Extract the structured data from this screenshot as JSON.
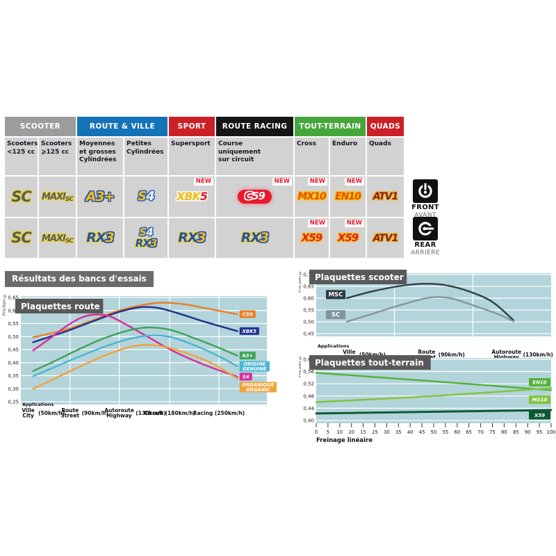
{
  "table": {
    "new_label": "NEW",
    "categories": [
      {
        "label": "SCOOTER",
        "span": 2,
        "color": "#9c9c9c"
      },
      {
        "label": "ROUTE & VILLE",
        "span": 2,
        "color": "#1472b7"
      },
      {
        "label": "SPORT",
        "span": 1,
        "color": "#cc2027"
      },
      {
        "label": "ROUTE RACING",
        "span": 1,
        "color": "#161616"
      },
      {
        "label": "TOUT-TERRAIN",
        "span": 2,
        "color": "#47a63b"
      },
      {
        "label": "QUADS",
        "span": 1,
        "color": "#cc2027"
      }
    ],
    "columns": [
      "Scooters\n<125 cc",
      "Scooters\n⩾125 cc",
      "Moyennes\net grosses\nCylindrées",
      "Petites\nCylindrées",
      "Supersport",
      "Course\nuniquement\nsur circuit",
      "Cross",
      "Enduro",
      "Quads"
    ],
    "front": {
      "label": "FRONT",
      "sub": "AVANT"
    },
    "rear": {
      "label": "REAR",
      "sub": "ARRIÈRE"
    },
    "rows": [
      {
        "name": "front",
        "cells": [
          {
            "badges": [
              {
                "style": "sc",
                "parts": [
                  [
                    "SC",
                    "p1"
                  ]
                ]
              }
            ]
          },
          {
            "badges": [
              {
                "style": "maxisc",
                "parts": [
                  [
                    "MAXI",
                    "p1"
                  ],
                  [
                    "SC",
                    "p2"
                  ]
                ]
              }
            ]
          },
          {
            "badges": [
              {
                "style": "a3",
                "parts": [
                  [
                    "A3+",
                    "p1"
                  ]
                ]
              }
            ]
          },
          {
            "badges": [
              {
                "style": "s4",
                "parts": [
                  [
                    "S",
                    "p1"
                  ],
                  [
                    "4",
                    "p2"
                  ]
                ]
              }
            ]
          },
          {
            "new": true,
            "badges": [
              {
                "style": "xbk5",
                "parts": [
                  [
                    "XBK",
                    "p1"
                  ],
                  [
                    "5",
                    "p2"
                  ]
                ]
              }
            ]
          },
          {
            "new": true,
            "badges": [
              {
                "style": "c59",
                "parts": [
                  [
                    "C",
                    "p1"
                  ],
                  [
                    "59",
                    "p2"
                  ]
                ]
              }
            ]
          },
          {
            "new": true,
            "badges": [
              {
                "style": "mx10",
                "parts": [
                  [
                    "MX10",
                    "p1"
                  ]
                ]
              }
            ]
          },
          {
            "new": true,
            "badges": [
              {
                "style": "en10",
                "parts": [
                  [
                    "EN10",
                    "p1"
                  ]
                ]
              }
            ]
          },
          {
            "badges": [
              {
                "style": "atv1",
                "parts": [
                  [
                    "ATV1",
                    "p1"
                  ]
                ]
              }
            ]
          }
        ]
      },
      {
        "name": "rear",
        "cells": [
          {
            "badges": [
              {
                "style": "sc",
                "parts": [
                  [
                    "SC",
                    "p1"
                  ]
                ]
              }
            ]
          },
          {
            "badges": [
              {
                "style": "maxisc",
                "parts": [
                  [
                    "MAXI",
                    "p1"
                  ],
                  [
                    "SC",
                    "p2"
                  ]
                ]
              }
            ]
          },
          {
            "badges": [
              {
                "style": "rx3",
                "parts": [
                  [
                    "RX",
                    "p1"
                  ],
                  [
                    "3",
                    "p2"
                  ]
                ]
              }
            ]
          },
          {
            "stack": true,
            "badges": [
              {
                "style": "s4",
                "parts": [
                  [
                    "S",
                    "p1"
                  ],
                  [
                    "4",
                    "p2"
                  ]
                ]
              },
              {
                "style": "rx3",
                "parts": [
                  [
                    "RX",
                    "p1"
                  ],
                  [
                    "3",
                    "p2"
                  ]
                ]
              }
            ]
          },
          {
            "badges": [
              {
                "style": "rx3",
                "parts": [
                  [
                    "RX",
                    "p1"
                  ],
                  [
                    "3",
                    "p2"
                  ]
                ]
              }
            ]
          },
          {
            "badges": [
              {
                "style": "rx3",
                "parts": [
                  [
                    "RX",
                    "p1"
                  ],
                  [
                    "3",
                    "p2"
                  ]
                ]
              }
            ]
          },
          {
            "new": true,
            "badges": [
              {
                "style": "x59",
                "parts": [
                  [
                    "X59",
                    "p1"
                  ]
                ]
              }
            ]
          },
          {
            "new": true,
            "badges": [
              {
                "style": "x59",
                "parts": [
                  [
                    "X59",
                    "p1"
                  ]
                ]
              }
            ]
          },
          {
            "badges": [
              {
                "style": "atv1",
                "parts": [
                  [
                    "ATV1",
                    "p1"
                  ]
                ]
              }
            ]
          }
        ]
      }
    ]
  },
  "results_title": "Résultats des bancs d'essais",
  "chart_data": [
    {
      "id": "route",
      "type": "line",
      "title": "Plaquettes route",
      "ylabel": "Friction µ",
      "applications_label": "Applications",
      "ylim": [
        0.25,
        0.65
      ],
      "yticks": [
        "0,65",
        "0,60",
        "0,55",
        "0,50",
        "0,45",
        "0,40",
        "0,35",
        "0,30",
        "0,25"
      ],
      "vgrid_pct": [
        20,
        40,
        60.5,
        80.5
      ],
      "stations": [
        {
          "fr": "Ville",
          "en": "City",
          "speed": "(50km/h)",
          "pct": 3
        },
        {
          "fr": "Route",
          "en": "Street",
          "speed": "(90km/h)",
          "pct": 20
        },
        {
          "fr": "Autoroute",
          "en": "Highway",
          "speed": "(130km/h)",
          "pct": 40
        },
        {
          "fr": "Circuit",
          "en": "",
          "speed": "(180km/h)",
          "pct": 60.5
        },
        {
          "fr": "Racing",
          "en": "",
          "speed": "(250km/h)",
          "pct": 80.5
        }
      ],
      "series": [
        {
          "name": "C59",
          "color": "#e8802a",
          "points": [
            [
              5,
              0.497
            ],
            [
              12,
              0.512
            ],
            [
              19,
              0.528
            ],
            [
              30,
              0.565
            ],
            [
              39,
              0.597
            ],
            [
              50,
              0.622
            ],
            [
              58,
              0.63
            ],
            [
              67,
              0.623
            ],
            [
              77,
              0.605
            ],
            [
              88,
              0.586
            ]
          ],
          "legend": {
            "lines": [
              "C59"
            ],
            "mu": 0.586
          }
        },
        {
          "name": "XBK5",
          "color": "#24338f",
          "points": [
            [
              5,
              0.478
            ],
            [
              12,
              0.5
            ],
            [
              19,
              0.522
            ],
            [
              30,
              0.561
            ],
            [
              39,
              0.592
            ],
            [
              48,
              0.612
            ],
            [
              55,
              0.611
            ],
            [
              63,
              0.592
            ],
            [
              75,
              0.556
            ],
            [
              88,
              0.521
            ]
          ],
          "legend": {
            "lines": [
              "XBK5"
            ],
            "mu": 0.521
          }
        },
        {
          "name": "S4",
          "color": "#d6319b",
          "points": [
            [
              5,
              0.447
            ],
            [
              12,
              0.494
            ],
            [
              19,
              0.543
            ],
            [
              25,
              0.574
            ],
            [
              30,
              0.584
            ],
            [
              36,
              0.578
            ],
            [
              43,
              0.545
            ],
            [
              51,
              0.502
            ],
            [
              62,
              0.444
            ],
            [
              75,
              0.39
            ],
            [
              88,
              0.346
            ]
          ],
          "legend": {
            "lines": [
              "S4"
            ],
            "mu": 0.346
          }
        },
        {
          "name": "A3+",
          "color": "#3fa45c",
          "points": [
            [
              5,
              0.368
            ],
            [
              14,
              0.407
            ],
            [
              24,
              0.453
            ],
            [
              34,
              0.494
            ],
            [
              44,
              0.524
            ],
            [
              52,
              0.535
            ],
            [
              61,
              0.525
            ],
            [
              71,
              0.492
            ],
            [
              81,
              0.455
            ],
            [
              88,
              0.427
            ]
          ],
          "legend": {
            "lines": [
              "A3+"
            ],
            "mu": 0.427
          }
        },
        {
          "name": "ORIGINE / GENUINE",
          "color": "#4ab6d4",
          "points": [
            [
              5,
              0.348
            ],
            [
              14,
              0.384
            ],
            [
              24,
              0.424
            ],
            [
              34,
              0.461
            ],
            [
              44,
              0.491
            ],
            [
              53,
              0.504
            ],
            [
              61,
              0.498
            ],
            [
              71,
              0.465
            ],
            [
              81,
              0.422
            ],
            [
              88,
              0.386
            ]
          ],
          "legend": {
            "lines": [
              "ORIGINE",
              "GENUINE"
            ],
            "mu": 0.386
          }
        },
        {
          "name": "ORGANIQUE / ORGANIC",
          "color": "#f0a43c",
          "points": [
            [
              5,
              0.299
            ],
            [
              14,
              0.34
            ],
            [
              24,
              0.385
            ],
            [
              34,
              0.427
            ],
            [
              44,
              0.459
            ],
            [
              51,
              0.468
            ],
            [
              59,
              0.46
            ],
            [
              68,
              0.434
            ],
            [
              78,
              0.396
            ],
            [
              88,
              0.339
            ]
          ],
          "legend": {
            "lines": [
              "ORGANIQUE",
              "ORGANIC"
            ],
            "mu": 0.306
          }
        }
      ]
    },
    {
      "id": "scooter",
      "type": "line",
      "title": "Plaquettes scooter",
      "ylabel": "Friction µ",
      "applications_label": "Applications",
      "ylim": [
        0.45,
        0.7
      ],
      "yticks": [
        "0,70",
        "0,65",
        "0,60",
        "0,55",
        "0,50",
        "0,45"
      ],
      "vgrid_pct": [
        33.3,
        66.7
      ],
      "stations": [
        {
          "fr": "Ville",
          "en": "City",
          "speed": "(50km/h)",
          "pct": 14
        },
        {
          "fr": "Route",
          "en": "Street",
          "speed": "(90km/h)",
          "pct": 47
        },
        {
          "fr": "Autoroute",
          "en": "Highway",
          "speed": "(130km/h)",
          "pct": 81
        }
      ],
      "series": [
        {
          "name": "MSC",
          "color": "#33444b",
          "points": [
            [
              13,
              0.6
            ],
            [
              24,
              0.629
            ],
            [
              36,
              0.652
            ],
            [
              46,
              0.661
            ],
            [
              55,
              0.655
            ],
            [
              65,
              0.629
            ],
            [
              75,
              0.584
            ],
            [
              84,
              0.506
            ]
          ],
          "legend": {
            "lines": [
              "MSC"
            ],
            "mu": 0.615,
            "bg": "#2d3b41"
          }
        },
        {
          "name": "SC",
          "color": "#84999f",
          "points": [
            [
              13,
              0.5
            ],
            [
              24,
              0.534
            ],
            [
              36,
              0.571
            ],
            [
              48,
              0.602
            ],
            [
              57,
              0.6
            ],
            [
              67,
              0.569
            ],
            [
              77,
              0.534
            ],
            [
              84,
              0.502
            ]
          ],
          "legend": {
            "lines": [
              "SC"
            ],
            "mu": 0.53,
            "bg": "#7f959b"
          }
        }
      ]
    },
    {
      "id": "tt",
      "type": "line",
      "title": "Plaquettes tout-terrain",
      "ylabel": "Friction µ",
      "xlabel": "Freinage linéaire",
      "ylim": [
        0.4,
        0.6
      ],
      "yticks": [
        "0,60",
        "0,56",
        "0,52",
        "0,48",
        "0,44",
        "0,40"
      ],
      "xticks": [
        "0",
        "5",
        "10",
        "20",
        "15",
        "25",
        "30",
        "35",
        "40",
        "45",
        "50",
        "55",
        "60",
        "65",
        "70",
        "75",
        "80",
        "85",
        "90",
        "95",
        "100"
      ],
      "series": [
        {
          "name": "EN10",
          "color": "#55b23c",
          "points": [
            [
              0,
              0.556
            ],
            [
              50,
              0.528
            ],
            [
              100,
              0.499
            ]
          ],
          "legend": {
            "lines": [
              "EN10"
            ],
            "mu": 0.525
          }
        },
        {
          "name": "MX10",
          "color": "#83c341",
          "points": [
            [
              0,
              0.46
            ],
            [
              50,
              0.48
            ],
            [
              100,
              0.506
            ]
          ],
          "legend": {
            "lines": [
              "MX10"
            ],
            "mu": 0.468
          }
        },
        {
          "name": "X59",
          "color": "#0d5a31",
          "sw": 3,
          "points": [
            [
              0,
              0.423
            ],
            [
              100,
              0.434
            ]
          ],
          "legend": {
            "lines": [
              "X59"
            ],
            "mu": 0.417
          }
        }
      ]
    }
  ]
}
